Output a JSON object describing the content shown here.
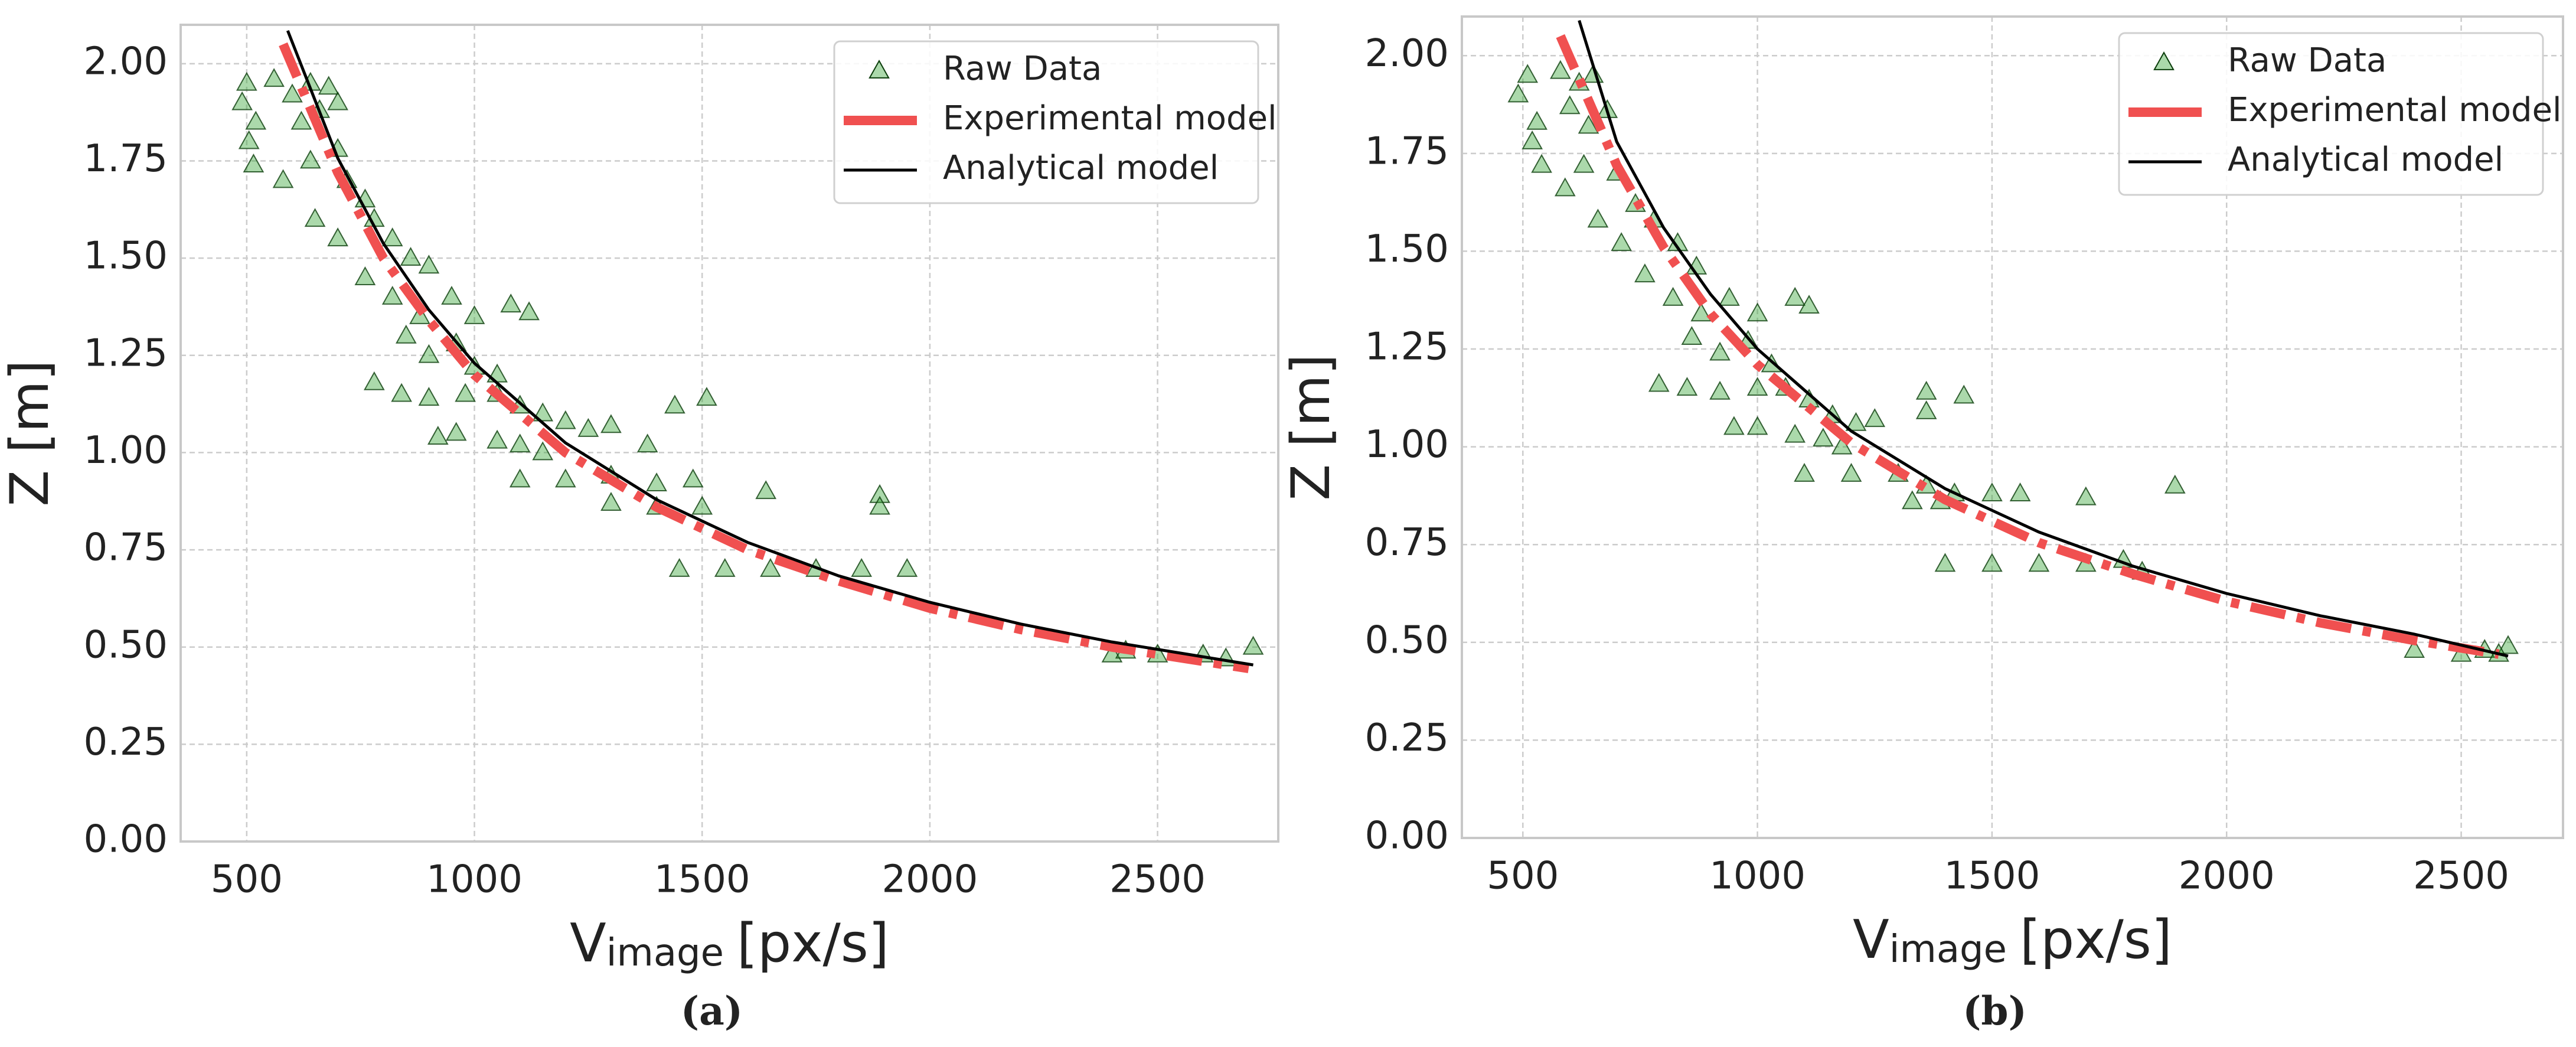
{
  "chart_data": [
    {
      "type": "scatter",
      "caption": "(a)",
      "ylabel": "Z [m]",
      "xlabel": {
        "main": "V",
        "sub": "image",
        "unit": "[px/s]"
      },
      "xlim": [
        355,
        2765
      ],
      "ylim": [
        0,
        2.1
      ],
      "xticks": [
        500,
        1000,
        1500,
        2000,
        2500
      ],
      "yticks": [
        {
          "value": 0,
          "label": "0.00"
        },
        {
          "value": 0.25,
          "label": "0.25"
        },
        {
          "value": 0.5,
          "label": "0.50"
        },
        {
          "value": 0.75,
          "label": "0.75"
        },
        {
          "value": 1,
          "label": "1.00"
        },
        {
          "value": 1.25,
          "label": "1.25"
        },
        {
          "value": 1.5,
          "label": "1.50"
        },
        {
          "value": 1.75,
          "label": "1.75"
        },
        {
          "value": 2,
          "label": "2.00"
        }
      ],
      "grid": true,
      "legend": "upper right",
      "series": [
        {
          "name": "Raw Data",
          "style": "triangle",
          "color": "#2ca02c",
          "x": [
            500,
            490,
            520,
            505,
            515,
            560,
            600,
            640,
            680,
            620,
            660,
            700,
            580,
            640,
            700,
            720,
            760,
            650,
            700,
            780,
            820,
            860,
            900,
            760,
            820,
            880,
            950,
            1000,
            1080,
            1120,
            850,
            900,
            960,
            1000,
            1050,
            780,
            840,
            900,
            980,
            1050,
            1100,
            1150,
            1200,
            1250,
            1300,
            920,
            960,
            1050,
            1100,
            1150,
            1380,
            1440,
            1510,
            1100,
            1200,
            1300,
            1400,
            1480,
            1300,
            1400,
            1500,
            1640,
            1890,
            1890,
            1450,
            1550,
            1650,
            1750,
            1850,
            1950,
            2400,
            2500,
            2600,
            2650,
            2710,
            2430
          ],
          "y": [
            1.95,
            1.9,
            1.85,
            1.8,
            1.74,
            1.96,
            1.92,
            1.95,
            1.94,
            1.85,
            1.88,
            1.9,
            1.7,
            1.75,
            1.78,
            1.7,
            1.65,
            1.6,
            1.55,
            1.6,
            1.55,
            1.5,
            1.48,
            1.45,
            1.4,
            1.35,
            1.4,
            1.35,
            1.38,
            1.36,
            1.3,
            1.25,
            1.28,
            1.22,
            1.2,
            1.18,
            1.15,
            1.14,
            1.15,
            1.15,
            1.12,
            1.1,
            1.08,
            1.06,
            1.07,
            1.04,
            1.05,
            1.03,
            1.02,
            1,
            1.02,
            1.12,
            1.14,
            0.93,
            0.93,
            0.94,
            0.92,
            0.93,
            0.87,
            0.86,
            0.86,
            0.9,
            0.89,
            0.86,
            0.7,
            0.7,
            0.7,
            0.7,
            0.7,
            0.7,
            0.48,
            0.48,
            0.48,
            0.47,
            0.5,
            0.49
          ]
        },
        {
          "name": "Experimental model",
          "style": "dashdot",
          "color": "#f05050",
          "x": [
            580,
            700,
            800,
            900,
            1000,
            1200,
            1400,
            1600,
            1800,
            2000,
            2200,
            2400,
            2700
          ],
          "y": [
            2.05,
            1.72,
            1.5,
            1.34,
            1.2,
            1,
            0.86,
            0.75,
            0.67,
            0.6,
            0.545,
            0.5,
            0.445
          ]
        },
        {
          "name": "Analytical model",
          "style": "solid",
          "color": "#000000",
          "x": [
            590,
            700,
            800,
            900,
            1000,
            1200,
            1400,
            1600,
            1800,
            2000,
            2200,
            2400,
            2710
          ],
          "y": [
            2.085,
            1.757,
            1.538,
            1.367,
            1.23,
            1.025,
            0.879,
            0.769,
            0.683,
            0.615,
            0.559,
            0.513,
            0.454
          ]
        }
      ]
    },
    {
      "type": "scatter",
      "caption": "(b)",
      "ylabel": "Z [m]",
      "xlabel": {
        "main": "V",
        "sub": "image",
        "unit": "[px/s]"
      },
      "xlim": [
        370,
        2717
      ],
      "ylim": [
        0,
        2.1
      ],
      "xticks": [
        500,
        1000,
        1500,
        2000,
        2500
      ],
      "yticks": [
        {
          "value": 0,
          "label": "0.00"
        },
        {
          "value": 0.25,
          "label": "0.25"
        },
        {
          "value": 0.5,
          "label": "0.50"
        },
        {
          "value": 0.75,
          "label": "0.75"
        },
        {
          "value": 1,
          "label": "1.00"
        },
        {
          "value": 1.25,
          "label": "1.25"
        },
        {
          "value": 1.5,
          "label": "1.50"
        },
        {
          "value": 1.75,
          "label": "1.75"
        },
        {
          "value": 2,
          "label": "2.00"
        }
      ],
      "grid": true,
      "legend": "upper right",
      "series": [
        {
          "name": "Raw Data",
          "style": "triangle",
          "color": "#2ca02c",
          "x": [
            510,
            490,
            530,
            520,
            540,
            580,
            620,
            650,
            600,
            640,
            680,
            590,
            630,
            700,
            740,
            660,
            710,
            780,
            830,
            870,
            760,
            820,
            880,
            940,
            1000,
            1080,
            1110,
            860,
            920,
            980,
            1030,
            790,
            850,
            920,
            1000,
            1060,
            1110,
            1160,
            1210,
            1250,
            950,
            1000,
            1080,
            1140,
            1180,
            1360,
            1360,
            1440,
            1100,
            1200,
            1300,
            1360,
            1420,
            1330,
            1390,
            1500,
            1560,
            1700,
            1890,
            1400,
            1500,
            1600,
            1700,
            1780,
            1820,
            2400,
            2500,
            2550,
            2600,
            2580
          ],
          "y": [
            1.95,
            1.9,
            1.83,
            1.78,
            1.72,
            1.96,
            1.93,
            1.95,
            1.87,
            1.82,
            1.86,
            1.66,
            1.72,
            1.7,
            1.62,
            1.58,
            1.52,
            1.58,
            1.52,
            1.46,
            1.44,
            1.38,
            1.34,
            1.38,
            1.34,
            1.38,
            1.36,
            1.28,
            1.24,
            1.27,
            1.21,
            1.16,
            1.15,
            1.14,
            1.15,
            1.15,
            1.12,
            1.08,
            1.06,
            1.07,
            1.05,
            1.05,
            1.03,
            1.02,
            1,
            1.14,
            1.09,
            1.13,
            0.93,
            0.93,
            0.93,
            0.9,
            0.88,
            0.86,
            0.86,
            0.88,
            0.88,
            0.87,
            0.9,
            0.7,
            0.7,
            0.7,
            0.7,
            0.71,
            0.68,
            0.48,
            0.47,
            0.48,
            0.49,
            0.47
          ]
        },
        {
          "name": "Experimental model",
          "style": "dashdot",
          "color": "#f05050",
          "x": [
            580,
            700,
            800,
            900,
            1000,
            1200,
            1400,
            1600,
            1800,
            2000,
            2200,
            2400,
            2580
          ],
          "y": [
            2.05,
            1.72,
            1.51,
            1.34,
            1.21,
            1.01,
            0.865,
            0.755,
            0.675,
            0.605,
            0.55,
            0.505,
            0.47
          ]
        },
        {
          "name": "Analytical model",
          "style": "solid",
          "color": "#000000",
          "x": [
            620,
            700,
            800,
            900,
            1000,
            1200,
            1400,
            1600,
            1800,
            2000,
            2200,
            2400,
            2600
          ],
          "y": [
            2.09,
            1.78,
            1.56,
            1.39,
            1.25,
            1.04,
            0.893,
            0.782,
            0.695,
            0.625,
            0.568,
            0.521,
            0.465
          ]
        }
      ]
    }
  ]
}
